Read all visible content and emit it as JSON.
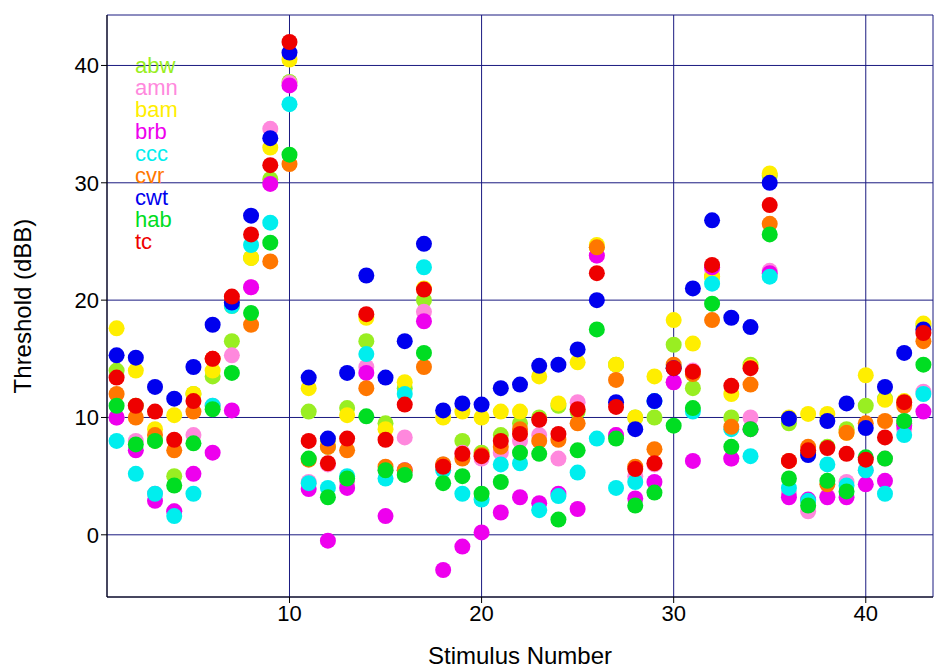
{
  "chart_data": {
    "type": "scatter",
    "xlabel": "Stimulus Number",
    "ylabel": "Threshold (dBB)",
    "x": [
      1,
      2,
      3,
      4,
      5,
      6,
      7,
      8,
      9,
      10,
      11,
      12,
      13,
      14,
      15,
      16,
      17,
      18,
      19,
      20,
      21,
      22,
      23,
      24,
      25,
      26,
      27,
      28,
      29,
      30,
      31,
      32,
      33,
      34,
      35,
      36,
      37,
      38,
      39,
      40,
      41,
      42,
      43
    ],
    "xlim": [
      0.5,
      43.5
    ],
    "xticks": [
      10,
      20,
      30,
      40
    ],
    "ylim": [
      -5.3,
      44.3
    ],
    "yticks": [
      0,
      10,
      20,
      30,
      40
    ],
    "grid": true,
    "legend": "upper left",
    "marker": "circle",
    "series": [
      {
        "name": "abw",
        "color": "#99ee22",
        "values": [
          14,
          11,
          8,
          5,
          12,
          13.5,
          16.5,
          23.6,
          30.3,
          38.6,
          10.5,
          7.5,
          10.8,
          16.5,
          9.5,
          12.5,
          20,
          6,
          8,
          7,
          8.5,
          9.5,
          10,
          11,
          10.5,
          24.5,
          14.5,
          10,
          10,
          16.2,
          12.5,
          22,
          10,
          14.5,
          30.6,
          9.5,
          7,
          7.5,
          9,
          11,
          11.6,
          9.5,
          17.8
        ]
      },
      {
        "name": "amn",
        "color": "#ff88dd",
        "values": [
          10,
          8,
          3.5,
          2,
          8.5,
          11,
          15.3,
          21.1,
          34.6,
          38.5,
          4.5,
          6,
          4.5,
          14.3,
          5.5,
          8.3,
          19,
          6,
          7,
          6.5,
          7,
          8,
          8.5,
          6.5,
          11.3,
          23.8,
          8.5,
          5,
          6,
          13,
          14,
          22.6,
          6.5,
          10,
          22.5,
          3.5,
          2,
          3.3,
          4.5,
          5.5,
          6.5,
          9,
          12.2
        ]
      },
      {
        "name": "bam",
        "color": "#ffee00",
        "values": [
          17.6,
          14,
          9,
          10.2,
          12,
          14,
          19.5,
          23.6,
          33,
          40.5,
          12.5,
          8,
          10.2,
          18.5,
          9,
          13,
          21,
          10,
          10.5,
          10,
          10.5,
          10.5,
          13.5,
          11.2,
          14.7,
          24.7,
          14.5,
          10,
          13.5,
          18.3,
          16.3,
          22,
          12,
          14.3,
          30.8,
          10,
          10.3,
          10.3,
          8.7,
          13.6,
          11.5,
          11.4,
          18
        ]
      },
      {
        "name": "brb",
        "color": "#ee00ee",
        "values": [
          10,
          7.2,
          2.9,
          2,
          5.2,
          7,
          10.6,
          21.1,
          29.9,
          38.3,
          3.9,
          -0.5,
          4,
          13.8,
          1.6,
          5.5,
          18.2,
          -3,
          -1,
          0.2,
          1.9,
          3.2,
          2.7,
          3.5,
          2.2,
          23.8,
          8.5,
          3.1,
          4.5,
          13,
          6.3,
          22.8,
          6.5,
          9,
          22.3,
          3.2,
          3,
          3.2,
          3.2,
          4.3,
          4.6,
          9.3,
          10.5
        ]
      },
      {
        "name": "ccc",
        "color": "#00eeee",
        "values": [
          8,
          5.2,
          3.5,
          1.6,
          3.5,
          11,
          19.5,
          24.7,
          26.6,
          36.7,
          4.4,
          4,
          5,
          15.4,
          4.8,
          12,
          22.8,
          5.5,
          3.5,
          3,
          6,
          6.1,
          2.1,
          3.3,
          5.3,
          8.2,
          4,
          4.5,
          11.4,
          14.3,
          10.5,
          21.4,
          9,
          6.7,
          22,
          4,
          2.9,
          6,
          4.2,
          5.5,
          3.5,
          8.5,
          12
        ]
      },
      {
        "name": "cvr",
        "color": "#ff7700",
        "values": [
          12,
          10,
          8.5,
          7.2,
          10.5,
          15,
          20,
          17.9,
          23.3,
          31.6,
          6.4,
          7.5,
          7.2,
          12.5,
          5.8,
          5.5,
          14.3,
          6,
          6.5,
          6.8,
          7.5,
          9,
          8,
          8.1,
          9.5,
          24.5,
          13.2,
          5.8,
          7.3,
          14.5,
          13.7,
          18.3,
          9.2,
          12.8,
          26.5,
          6.3,
          7.5,
          4.3,
          8.7,
          9.5,
          9.7,
          11,
          16.5
        ]
      },
      {
        "name": "cwt",
        "color": "#0000ee",
        "values": [
          15.3,
          15.1,
          12.6,
          11.6,
          14.3,
          17.9,
          19.8,
          27.2,
          33.8,
          41.1,
          13.4,
          8.2,
          13.8,
          22.1,
          13.4,
          16.5,
          24.8,
          10.6,
          11.2,
          11.1,
          12.5,
          12.8,
          14.4,
          14.5,
          15.8,
          20,
          11.3,
          9,
          11.4,
          14.2,
          21,
          26.8,
          18.5,
          17.7,
          30,
          9.9,
          6.8,
          9.7,
          11.2,
          9.1,
          12.6,
          15.5,
          17.5
        ]
      },
      {
        "name": "hab",
        "color": "#00dd22",
        "values": [
          11,
          7.7,
          8,
          4.2,
          7.8,
          10.7,
          13.8,
          18.9,
          24.9,
          32.4,
          6.5,
          3.2,
          4.8,
          10.1,
          5.5,
          5.1,
          15.5,
          4.4,
          5,
          3.5,
          4.5,
          7,
          6.9,
          1.3,
          7.2,
          17.5,
          8.2,
          2.5,
          3.6,
          9.3,
          10.8,
          19.7,
          7.5,
          9,
          25.6,
          4.8,
          2.5,
          4.6,
          3.7,
          6.6,
          6.5,
          9.7,
          14.5
        ]
      },
      {
        "name": "tc",
        "color": "#ee0000",
        "values": [
          13.4,
          11,
          10.5,
          8.1,
          11.4,
          15,
          20.3,
          25.6,
          31.5,
          42,
          8,
          6.1,
          8.2,
          18.8,
          8.1,
          11.1,
          20.9,
          5.8,
          6.9,
          6.7,
          8,
          8.6,
          9.8,
          8.6,
          10.7,
          22.3,
          10.9,
          5.6,
          6.1,
          14.2,
          13.9,
          23,
          12.7,
          14.2,
          28.1,
          6.3,
          7.2,
          7.4,
          6.9,
          6.4,
          8.3,
          11.3,
          17.2
        ]
      }
    ]
  }
}
